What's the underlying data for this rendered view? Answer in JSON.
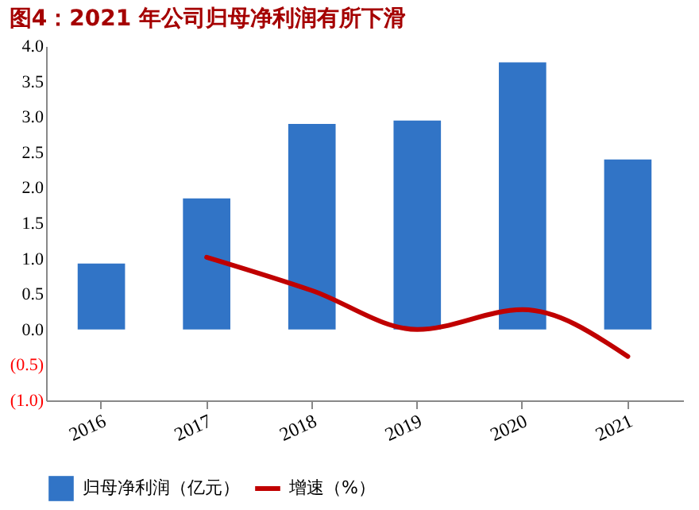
{
  "chart_data": {
    "type": "bar",
    "title": "图4：2021 年公司归母净利润有所下滑",
    "categories": [
      "2016",
      "2017",
      "2018",
      "2019",
      "2020",
      "2021"
    ],
    "series": [
      {
        "name": "归母净利润（亿元）",
        "color": "#3174c6",
        "type": "bar",
        "values": [
          0.93,
          1.85,
          2.9,
          2.95,
          3.77,
          2.4
        ]
      },
      {
        "name": "增速（%）",
        "color": "#c00000",
        "type": "line",
        "values": [
          null,
          1.02,
          0.55,
          0.0,
          0.28,
          -0.38
        ]
      }
    ],
    "ylim": [
      -1.0,
      4.0
    ],
    "yticks": [
      {
        "value": -1.0,
        "label": "(1.0)"
      },
      {
        "value": -0.5,
        "label": "(0.5)"
      },
      {
        "value": 0.0,
        "label": "0.0"
      },
      {
        "value": 0.5,
        "label": "0.5"
      },
      {
        "value": 1.0,
        "label": "1.0"
      },
      {
        "value": 1.5,
        "label": "1.5"
      },
      {
        "value": 2.0,
        "label": "2.0"
      },
      {
        "value": 2.5,
        "label": "2.5"
      },
      {
        "value": 3.0,
        "label": "3.0"
      },
      {
        "value": 3.5,
        "label": "3.5"
      },
      {
        "value": 4.0,
        "label": "4.0"
      }
    ],
    "grid": false,
    "legend": "bottom"
  }
}
